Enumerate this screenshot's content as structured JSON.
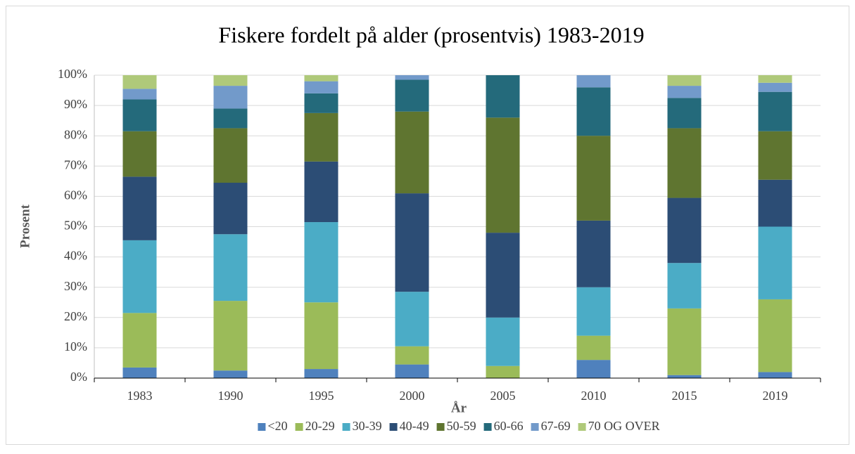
{
  "chart_data": {
    "type": "stacked_bar",
    "title": "Fiskere fordelt på alder (prosentvis) 1983-2019",
    "x_label": "År",
    "y_label": "Prosent",
    "categories": [
      "1983",
      "1990",
      "1995",
      "2000",
      "2005",
      "2010",
      "2015",
      "2019"
    ],
    "series": [
      {
        "name": "<20",
        "color": "#4f81bd",
        "values": [
          3.5,
          2.5,
          3,
          4.5,
          0,
          6,
          1,
          2
        ]
      },
      {
        "name": "20-29",
        "color": "#9bbb59",
        "values": [
          18,
          23,
          22,
          6,
          4,
          8,
          22,
          24
        ]
      },
      {
        "name": "30-39",
        "color": "#4bacc6",
        "values": [
          24,
          22,
          26.5,
          18,
          16,
          16,
          15,
          24
        ]
      },
      {
        "name": "40-49",
        "color": "#2c4d75",
        "values": [
          21,
          17,
          20,
          32.5,
          28,
          22,
          21.5,
          15.5
        ]
      },
      {
        "name": "50-59",
        "color": "#5f7530",
        "values": [
          15,
          18,
          16,
          27,
          38,
          28,
          23,
          16
        ]
      },
      {
        "name": "60-66",
        "color": "#246a7b",
        "values": [
          10.5,
          6.5,
          6.5,
          10.5,
          14,
          16,
          10,
          13
        ]
      },
      {
        "name": "67-69",
        "color": "#729aca",
        "values": [
          3.5,
          7.5,
          4,
          1.5,
          0,
          4,
          4,
          3
        ]
      },
      {
        "name": "70 OG OVER",
        "color": "#afc97a",
        "values": [
          4.5,
          3.5,
          2,
          0,
          0,
          0,
          3.5,
          2.5
        ]
      }
    ],
    "ylim": [
      0,
      100
    ],
    "yticks": [
      {
        "value": 0,
        "label": "0%"
      },
      {
        "value": 10,
        "label": "10%"
      },
      {
        "value": 20,
        "label": "20%"
      },
      {
        "value": 30,
        "label": "30%"
      },
      {
        "value": 40,
        "label": "40%"
      },
      {
        "value": 50,
        "label": "50%"
      },
      {
        "value": 60,
        "label": "60%"
      },
      {
        "value": 70,
        "label": "70%"
      },
      {
        "value": 80,
        "label": "80%"
      },
      {
        "value": 90,
        "label": "90%"
      },
      {
        "value": 100,
        "label": "100%"
      }
    ],
    "grid": true,
    "legend_position": "bottom"
  }
}
